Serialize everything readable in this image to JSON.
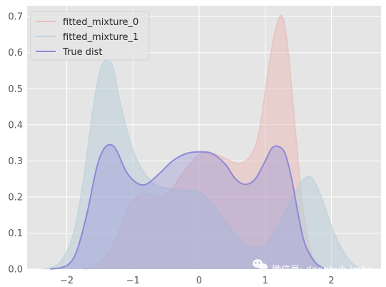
{
  "chart_data": {
    "type": "area",
    "title": "",
    "xlabel": "",
    "ylabel": "",
    "xlim": [
      -2.6,
      2.75
    ],
    "ylim": [
      0,
      0.73
    ],
    "xticks": [
      -2,
      -1,
      0,
      1,
      2
    ],
    "xtick_labels": [
      "−2",
      "−1",
      "0",
      "1",
      "2"
    ],
    "yticks": [
      0.0,
      0.1,
      0.2,
      0.3,
      0.4,
      0.5,
      0.6,
      0.7
    ],
    "ytick_labels": [
      "0.0",
      "0.1",
      "0.2",
      "0.3",
      "0.4",
      "0.5",
      "0.6",
      "0.7"
    ],
    "grid": true,
    "legend_position": "top-left",
    "series": [
      {
        "name": "fitted_mixture_0",
        "color": "#e8b4b0",
        "fill": true,
        "points": [
          [
            -1.75,
            0.0
          ],
          [
            -1.6,
            0.005
          ],
          [
            -1.4,
            0.04
          ],
          [
            -1.2,
            0.11
          ],
          [
            -1.05,
            0.18
          ],
          [
            -0.9,
            0.205
          ],
          [
            -0.8,
            0.21
          ],
          [
            -0.65,
            0.2
          ],
          [
            -0.45,
            0.215
          ],
          [
            -0.25,
            0.265
          ],
          [
            -0.05,
            0.31
          ],
          [
            0.1,
            0.325
          ],
          [
            0.3,
            0.315
          ],
          [
            0.55,
            0.295
          ],
          [
            0.7,
            0.3
          ],
          [
            0.85,
            0.34
          ],
          [
            0.95,
            0.43
          ],
          [
            1.05,
            0.56
          ],
          [
            1.15,
            0.66
          ],
          [
            1.22,
            0.7
          ],
          [
            1.28,
            0.69
          ],
          [
            1.35,
            0.6
          ],
          [
            1.45,
            0.4
          ],
          [
            1.55,
            0.2
          ],
          [
            1.65,
            0.08
          ],
          [
            1.75,
            0.02
          ],
          [
            1.85,
            0.0
          ]
        ]
      },
      {
        "name": "fitted_mixture_1",
        "color": "#b9cfdb",
        "fill": true,
        "points": [
          [
            -2.35,
            0.0
          ],
          [
            -2.1,
            0.02
          ],
          [
            -1.9,
            0.1
          ],
          [
            -1.75,
            0.25
          ],
          [
            -1.6,
            0.45
          ],
          [
            -1.5,
            0.55
          ],
          [
            -1.4,
            0.58
          ],
          [
            -1.3,
            0.56
          ],
          [
            -1.2,
            0.47
          ],
          [
            -1.05,
            0.36
          ],
          [
            -0.9,
            0.29
          ],
          [
            -0.7,
            0.24
          ],
          [
            -0.5,
            0.225
          ],
          [
            -0.25,
            0.22
          ],
          [
            0.0,
            0.215
          ],
          [
            0.2,
            0.18
          ],
          [
            0.45,
            0.12
          ],
          [
            0.7,
            0.07
          ],
          [
            0.85,
            0.06
          ],
          [
            1.05,
            0.08
          ],
          [
            1.3,
            0.16
          ],
          [
            1.5,
            0.23
          ],
          [
            1.62,
            0.255
          ],
          [
            1.72,
            0.25
          ],
          [
            1.85,
            0.2
          ],
          [
            2.0,
            0.12
          ],
          [
            2.15,
            0.06
          ],
          [
            2.3,
            0.02
          ],
          [
            2.45,
            0.0
          ]
        ]
      },
      {
        "name": "True dist",
        "color": "#8e89d6",
        "fill": true,
        "points": [
          [
            -2.25,
            0.0
          ],
          [
            -2.0,
            0.01
          ],
          [
            -1.85,
            0.05
          ],
          [
            -1.7,
            0.15
          ],
          [
            -1.55,
            0.28
          ],
          [
            -1.45,
            0.33
          ],
          [
            -1.35,
            0.345
          ],
          [
            -1.25,
            0.33
          ],
          [
            -1.1,
            0.27
          ],
          [
            -0.95,
            0.24
          ],
          [
            -0.8,
            0.235
          ],
          [
            -0.6,
            0.265
          ],
          [
            -0.4,
            0.3
          ],
          [
            -0.2,
            0.32
          ],
          [
            0.0,
            0.325
          ],
          [
            0.2,
            0.32
          ],
          [
            0.4,
            0.29
          ],
          [
            0.55,
            0.25
          ],
          [
            0.7,
            0.235
          ],
          [
            0.85,
            0.25
          ],
          [
            1.0,
            0.3
          ],
          [
            1.1,
            0.335
          ],
          [
            1.2,
            0.34
          ],
          [
            1.3,
            0.32
          ],
          [
            1.4,
            0.25
          ],
          [
            1.5,
            0.15
          ],
          [
            1.6,
            0.07
          ],
          [
            1.75,
            0.02
          ],
          [
            1.9,
            0.0
          ]
        ]
      }
    ]
  },
  "watermark": {
    "text": "微信号: deephub-imba",
    "icon": "wechat-icon"
  }
}
